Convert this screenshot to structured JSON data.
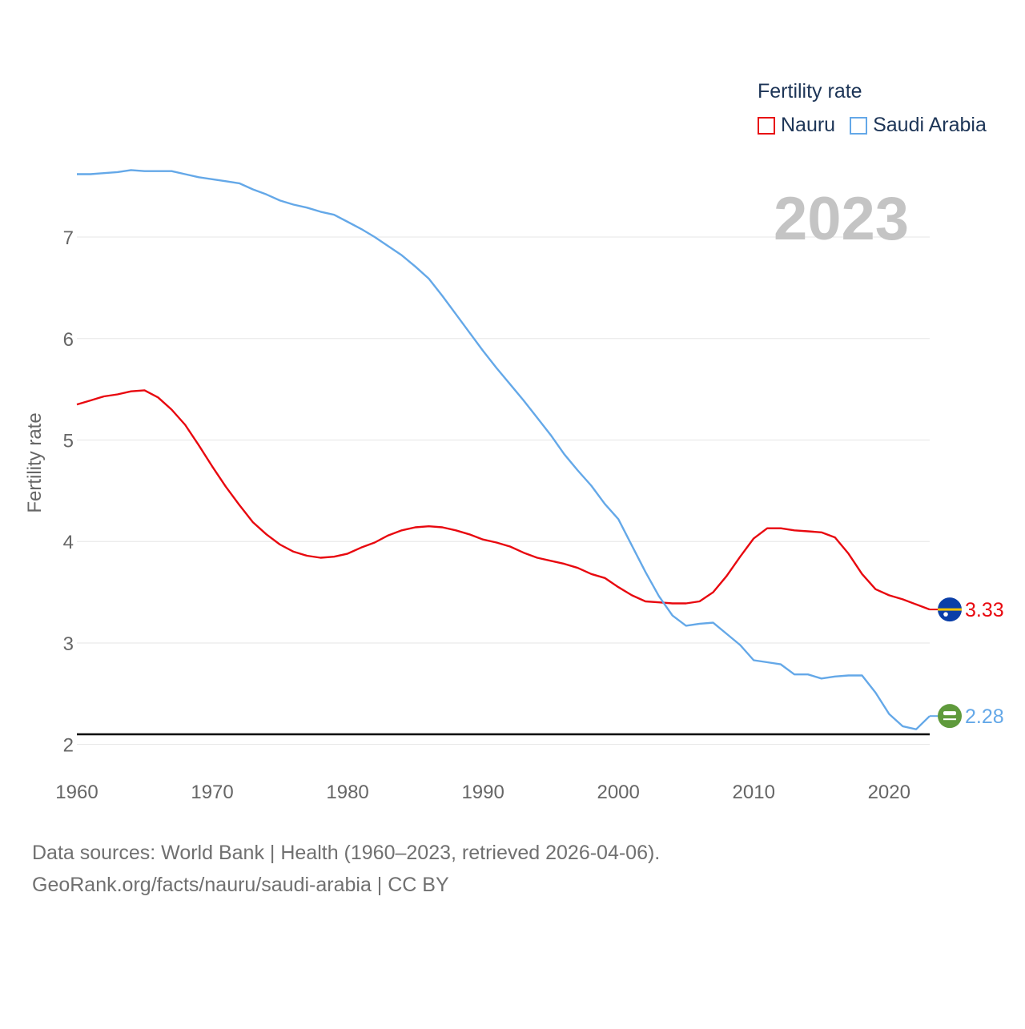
{
  "legend": {
    "title": "Fertility rate",
    "items": [
      {
        "label": "Nauru",
        "color": "#e8080f"
      },
      {
        "label": "Saudi Arabia",
        "color": "#64a8e8"
      }
    ]
  },
  "year_stamp": "2023",
  "source": {
    "line1": "Data sources: World Bank | Health (1960–2023, retrieved 2026-04-06).",
    "line2": "GeoRank.org/facts/nauru/saudi-arabia | CC BY"
  },
  "chart_data": {
    "type": "line",
    "title": "",
    "xlabel": "",
    "ylabel": "Fertility rate",
    "xlim": [
      1960,
      2023
    ],
    "ylim": [
      1.95,
      7.6
    ],
    "xticks": [
      1960,
      1970,
      1980,
      1990,
      2000,
      2010,
      2020
    ],
    "yticks": [
      2,
      3,
      4,
      5,
      6,
      7
    ],
    "reference_line": {
      "y": 2.1,
      "color": "#000000"
    },
    "series": [
      {
        "name": "Nauru",
        "color": "#e8080f",
        "end_label": "3.33",
        "flag": "nauru",
        "x": [
          1960,
          1961,
          1962,
          1963,
          1964,
          1965,
          1966,
          1967,
          1968,
          1969,
          1970,
          1971,
          1972,
          1973,
          1974,
          1975,
          1976,
          1977,
          1978,
          1979,
          1980,
          1981,
          1982,
          1983,
          1984,
          1985,
          1986,
          1987,
          1988,
          1989,
          1990,
          1991,
          1992,
          1993,
          1994,
          1995,
          1996,
          1997,
          1998,
          1999,
          2000,
          2001,
          2002,
          2003,
          2004,
          2005,
          2006,
          2007,
          2008,
          2009,
          2010,
          2011,
          2012,
          2013,
          2014,
          2015,
          2016,
          2017,
          2018,
          2019,
          2020,
          2021,
          2022,
          2023
        ],
        "values": [
          5.35,
          5.39,
          5.43,
          5.45,
          5.48,
          5.49,
          5.42,
          5.3,
          5.15,
          4.95,
          4.74,
          4.54,
          4.36,
          4.19,
          4.07,
          3.97,
          3.9,
          3.86,
          3.84,
          3.85,
          3.88,
          3.94,
          3.99,
          4.06,
          4.11,
          4.14,
          4.15,
          4.14,
          4.11,
          4.07,
          4.02,
          3.99,
          3.95,
          3.89,
          3.84,
          3.81,
          3.78,
          3.74,
          3.68,
          3.64,
          3.55,
          3.47,
          3.41,
          3.4,
          3.39,
          3.39,
          3.41,
          3.5,
          3.66,
          3.85,
          4.03,
          4.13,
          4.13,
          4.11,
          4.1,
          4.09,
          4.04,
          3.88,
          3.68,
          3.53,
          3.47,
          3.43,
          3.38,
          3.33
        ]
      },
      {
        "name": "Saudi Arabia",
        "color": "#64a8e8",
        "end_label": "2.28",
        "flag": "saudi-arabia",
        "x": [
          1960,
          1961,
          1962,
          1963,
          1964,
          1965,
          1966,
          1967,
          1968,
          1969,
          1970,
          1971,
          1972,
          1973,
          1974,
          1975,
          1976,
          1977,
          1978,
          1979,
          1980,
          1981,
          1982,
          1983,
          1984,
          1985,
          1986,
          1987,
          1988,
          1989,
          1990,
          1991,
          1992,
          1993,
          1994,
          1995,
          1996,
          1997,
          1998,
          1999,
          2000,
          2001,
          2002,
          2003,
          2004,
          2005,
          2006,
          2007,
          2008,
          2009,
          2010,
          2011,
          2012,
          2013,
          2014,
          2015,
          2016,
          2017,
          2018,
          2019,
          2020,
          2021,
          2022,
          2023
        ],
        "values": [
          7.62,
          7.62,
          7.63,
          7.64,
          7.66,
          7.65,
          7.65,
          7.65,
          7.62,
          7.59,
          7.57,
          7.55,
          7.53,
          7.47,
          7.42,
          7.36,
          7.32,
          7.29,
          7.25,
          7.22,
          7.15,
          7.08,
          7.0,
          6.91,
          6.82,
          6.71,
          6.59,
          6.42,
          6.24,
          6.06,
          5.88,
          5.71,
          5.55,
          5.39,
          5.22,
          5.05,
          4.86,
          4.7,
          4.55,
          4.37,
          4.22,
          3.96,
          3.7,
          3.46,
          3.27,
          3.17,
          3.19,
          3.2,
          3.09,
          2.98,
          2.83,
          2.81,
          2.79,
          2.69,
          2.69,
          2.65,
          2.67,
          2.68,
          2.68,
          2.51,
          2.3,
          2.18,
          2.15,
          2.28
        ]
      }
    ]
  }
}
